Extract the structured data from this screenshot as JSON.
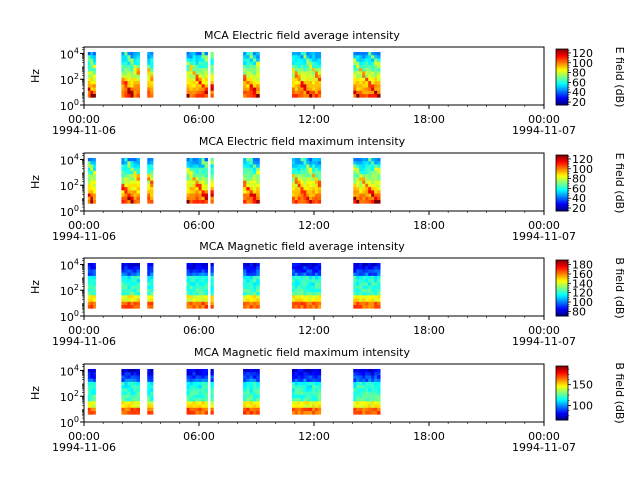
{
  "chart_data": [
    {
      "type": "heatmap",
      "title": "MCA  Electric field average intensity",
      "ylabel": "Hz",
      "yscale": "log",
      "ylim": [
        1,
        31622
      ],
      "yticks": [
        {
          "v": 1,
          "base": "10",
          "exp": "0"
        },
        {
          "v": 100,
          "base": "10",
          "exp": "2"
        },
        {
          "v": 10000,
          "base": "10",
          "exp": "4"
        }
      ],
      "xticks": [
        {
          "hour": 0,
          "label": "00:00",
          "date": "1994-11-06"
        },
        {
          "hour": 6,
          "label": "06:00",
          "date": ""
        },
        {
          "hour": 12,
          "label": "12:00",
          "date": ""
        },
        {
          "hour": 18,
          "label": "18:00",
          "date": ""
        },
        {
          "hour": 24,
          "label": "00:00",
          "date": "1994-11-07"
        }
      ],
      "colorbar": {
        "label": "E field (dB)",
        "range": [
          14,
          128
        ],
        "ticks": [
          20,
          40,
          60,
          80,
          100,
          120
        ]
      },
      "style": "electric",
      "intervals_hours": [
        [
          0.2,
          0.6
        ],
        [
          1.95,
          2.9
        ],
        [
          3.3,
          3.6
        ],
        [
          5.35,
          6.45
        ],
        [
          6.6,
          6.75
        ],
        [
          8.3,
          9.15
        ],
        [
          10.85,
          12.35
        ],
        [
          14.05,
          15.45
        ]
      ]
    },
    {
      "type": "heatmap",
      "title": "MCA  Electric field maximum intensity",
      "ylabel": "Hz",
      "yscale": "log",
      "ylim": [
        1,
        31622
      ],
      "yticks": [
        {
          "v": 1,
          "base": "10",
          "exp": "0"
        },
        {
          "v": 100,
          "base": "10",
          "exp": "2"
        },
        {
          "v": 10000,
          "base": "10",
          "exp": "4"
        }
      ],
      "xticks": [
        {
          "hour": 0,
          "label": "00:00",
          "date": "1994-11-06"
        },
        {
          "hour": 6,
          "label": "06:00",
          "date": ""
        },
        {
          "hour": 12,
          "label": "12:00",
          "date": ""
        },
        {
          "hour": 18,
          "label": "18:00",
          "date": ""
        },
        {
          "hour": 24,
          "label": "00:00",
          "date": "1994-11-07"
        }
      ],
      "colorbar": {
        "label": "E field (dB)",
        "range": [
          14,
          128
        ],
        "ticks": [
          20,
          40,
          60,
          80,
          100,
          120
        ]
      },
      "style": "electric",
      "intervals_hours": [
        [
          0.2,
          0.6
        ],
        [
          1.95,
          2.9
        ],
        [
          3.3,
          3.6
        ],
        [
          5.35,
          6.45
        ],
        [
          6.6,
          6.75
        ],
        [
          8.3,
          9.15
        ],
        [
          10.85,
          12.35
        ],
        [
          14.05,
          15.45
        ]
      ]
    },
    {
      "type": "heatmap",
      "title": "MCA  Magnetic field average intensity",
      "ylabel": "Hz",
      "yscale": "log",
      "ylim": [
        1,
        31622
      ],
      "yticks": [
        {
          "v": 1,
          "base": "10",
          "exp": "0"
        },
        {
          "v": 100,
          "base": "10",
          "exp": "2"
        },
        {
          "v": 10000,
          "base": "10",
          "exp": "4"
        }
      ],
      "xticks": [
        {
          "hour": 0,
          "label": "00:00",
          "date": "1994-11-06"
        },
        {
          "hour": 6,
          "label": "06:00",
          "date": ""
        },
        {
          "hour": 12,
          "label": "12:00",
          "date": ""
        },
        {
          "hour": 18,
          "label": "18:00",
          "date": ""
        },
        {
          "hour": 24,
          "label": "00:00",
          "date": "1994-11-07"
        }
      ],
      "colorbar": {
        "label": "B field (dB)",
        "range": [
          70,
          190
        ],
        "ticks": [
          80,
          100,
          120,
          140,
          160,
          180
        ]
      },
      "style": "magnetic",
      "intervals_hours": [
        [
          0.2,
          0.6
        ],
        [
          1.95,
          2.9
        ],
        [
          3.3,
          3.6
        ],
        [
          5.35,
          6.45
        ],
        [
          6.6,
          6.75
        ],
        [
          8.3,
          9.15
        ],
        [
          10.85,
          12.35
        ],
        [
          14.05,
          15.45
        ]
      ]
    },
    {
      "type": "heatmap",
      "title": "MCA  Magnetic field maximum intensity",
      "ylabel": "Hz",
      "yscale": "log",
      "ylim": [
        1,
        31622
      ],
      "yticks": [
        {
          "v": 1,
          "base": "10",
          "exp": "0"
        },
        {
          "v": 100,
          "base": "10",
          "exp": "2"
        },
        {
          "v": 10000,
          "base": "10",
          "exp": "4"
        }
      ],
      "xticks": [
        {
          "hour": 0,
          "label": "00:00",
          "date": "1994-11-06"
        },
        {
          "hour": 6,
          "label": "06:00",
          "date": ""
        },
        {
          "hour": 12,
          "label": "12:00",
          "date": ""
        },
        {
          "hour": 18,
          "label": "18:00",
          "date": ""
        },
        {
          "hour": 24,
          "label": "00:00",
          "date": "1994-11-07"
        }
      ],
      "colorbar": {
        "label": "B field (dB)",
        "range": [
          65,
          195
        ],
        "ticks": [
          100,
          150
        ]
      },
      "style": "magnetic",
      "intervals_hours": [
        [
          0.2,
          0.6
        ],
        [
          1.95,
          2.9
        ],
        [
          3.3,
          3.6
        ],
        [
          5.35,
          6.45
        ],
        [
          6.6,
          6.75
        ],
        [
          8.3,
          9.15
        ],
        [
          10.85,
          12.35
        ],
        [
          14.05,
          15.45
        ]
      ]
    }
  ]
}
